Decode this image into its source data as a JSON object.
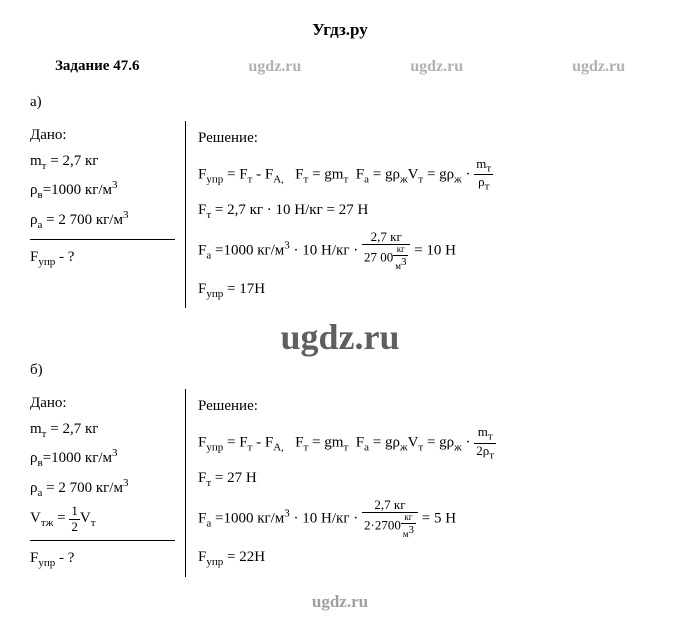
{
  "header": {
    "site": "Угдз.ру"
  },
  "watermarks": {
    "small": "ugdz.ru",
    "big": "ugdz.ru"
  },
  "task": {
    "title": "Задание 47.6"
  },
  "partA": {
    "label": "а)",
    "given_title": "Дано:",
    "given": {
      "l1": "mₜ = 2,7 кг",
      "l2": "ρ_в=1000 кг/м³",
      "l3": "ρ_а = 2 700 кг/м³",
      "question": "F_упр - ?"
    },
    "solution_title": "Решение:",
    "solution": {
      "l1_left": "F_упр = F_т - F_A,    F_т = gm_т   F_а = gρ_ж V_т = gρ_ж · ",
      "l1_frac_num": "m_т",
      "l1_frac_den": "ρ_т",
      "l2": "F_т = 2,7 кг · 10 Н/кг = 27 Н",
      "l3_left": "F_а =1000 кг/м³ · 10 Н/кг · ",
      "l3_frac_num": "2,7 кг",
      "l3_frac_den": "27 00 кг/м³",
      "l3_right": " = 10 Н",
      "l4": "F_упр = 17Н"
    }
  },
  "partB": {
    "label": "б)",
    "given_title": "Дано:",
    "given": {
      "l1": "mₜ = 2,7 кг",
      "l2": "ρ_в=1000 кг/м³",
      "l3": "ρ_а = 2 700 кг/м³",
      "l4_left": "V_тж = ",
      "l4_frac_num": "1",
      "l4_frac_den": "2",
      "l4_right": "V_т",
      "question": "F_упр - ?"
    },
    "solution_title": "Решение:",
    "solution": {
      "l1_left": "F_упр = F_т - F_A,    F_т = gm_т   F_а = gρ_ж V_т = gρ_ж · ",
      "l1_frac_num": "m_т",
      "l1_frac_den": "2ρ_т",
      "l2": "F_т = 27 Н",
      "l3_left": "F_а =1000 кг/м³ · 10 Н/кг · ",
      "l3_frac_num": "2,7 кг",
      "l3_frac_den": "2·2700 кг/м³",
      "l3_right": " = 5 Н",
      "l4": "F_упр = 22Н"
    }
  }
}
